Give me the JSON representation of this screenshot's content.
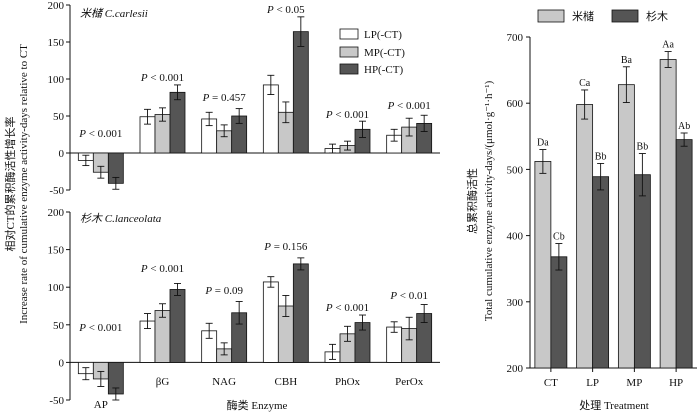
{
  "colors": {
    "low": "#ffffff",
    "mid": "#c8c8c8",
    "high": "#555555",
    "axis": "#111111"
  },
  "left_figure": {
    "y_axis_title_cn": "相对CT的累积酶活性增长率",
    "y_axis_title_en_1": "Increase rate of cumulative enzyme activity-days relative to CT",
    "x_axis_title": "酶类 Enzyme",
    "legend": [
      "LP(-CT)",
      "MP(-CT)",
      "HP(-CT)"
    ]
  },
  "right_figure": {
    "y_axis_title_cn": "总累积酶活性",
    "y_axis_title_en": "Total cumulative enzyme activity-days/(μmol·g⁻¹·h⁻¹)",
    "x_axis_title": "处理 Treatment",
    "legend": [
      "米槠",
      "杉木"
    ]
  },
  "chart_data": [
    {
      "type": "bar",
      "title": "米槠 C.carlesii",
      "categories": [
        "AP",
        "βG",
        "NAG",
        "CBH",
        "PhOx",
        "PerOx"
      ],
      "series": [
        {
          "name": "LP(-CT)",
          "values": [
            -10,
            49,
            46,
            92,
            6,
            24
          ],
          "errors": [
            7,
            10,
            9,
            13,
            6,
            8
          ]
        },
        {
          "name": "MP(-CT)",
          "values": [
            -26,
            52,
            30,
            55,
            10,
            35
          ],
          "errors": [
            8,
            9,
            8,
            14,
            6,
            12
          ]
        },
        {
          "name": "HP(-CT)",
          "values": [
            -41,
            82,
            50,
            164,
            32,
            40
          ],
          "errors": [
            8,
            10,
            10,
            20,
            11,
            11
          ]
        }
      ],
      "p_values": [
        "P < 0.001",
        "P < 0.001",
        "P = 0.457",
        "P < 0.05",
        "P < 0.001",
        "P < 0.001"
      ],
      "ylim": [
        -50,
        200
      ],
      "yticks": [
        -50,
        0,
        50,
        100,
        150,
        200
      ]
    },
    {
      "type": "bar",
      "title": "杉木 C.lanceolata",
      "categories": [
        "AP",
        "βG",
        "NAG",
        "CBH",
        "PhOx",
        "PerOx"
      ],
      "series": [
        {
          "name": "LP(-CT)",
          "values": [
            -15,
            55,
            42,
            107,
            14,
            47
          ],
          "errors": [
            8,
            10,
            10,
            7,
            10,
            7
          ]
        },
        {
          "name": "MP(-CT)",
          "values": [
            -22,
            69,
            18,
            75,
            38,
            45
          ],
          "errors": [
            10,
            9,
            8,
            14,
            10,
            15
          ]
        },
        {
          "name": "HP(-CT)",
          "values": [
            -42,
            97,
            66,
            131,
            53,
            65
          ],
          "errors": [
            8,
            8,
            15,
            8,
            10,
            12
          ]
        }
      ],
      "p_values": [
        "P < 0.001",
        "P < 0.001",
        "P = 0.09",
        "P = 0.156",
        "P < 0.001",
        "P < 0.01"
      ],
      "ylim": [
        -50,
        200
      ],
      "yticks": [
        -50,
        0,
        50,
        100,
        150,
        200
      ]
    },
    {
      "type": "bar",
      "categories": [
        "CT",
        "LP",
        "MP",
        "HP"
      ],
      "series": [
        {
          "name": "米槠",
          "values": [
            512,
            598,
            628,
            666
          ],
          "errors": [
            18,
            22,
            27,
            12
          ],
          "letters": [
            "Da",
            "Ca",
            "Ba",
            "Aa"
          ]
        },
        {
          "name": "杉木",
          "values": [
            368,
            489,
            492,
            545
          ],
          "errors": [
            20,
            20,
            32,
            10
          ],
          "letters": [
            "Cb",
            "Bb",
            "Bb",
            "Ab"
          ]
        }
      ],
      "ylim": [
        200,
        700
      ],
      "yticks": [
        200,
        300,
        400,
        500,
        600,
        700
      ]
    }
  ]
}
